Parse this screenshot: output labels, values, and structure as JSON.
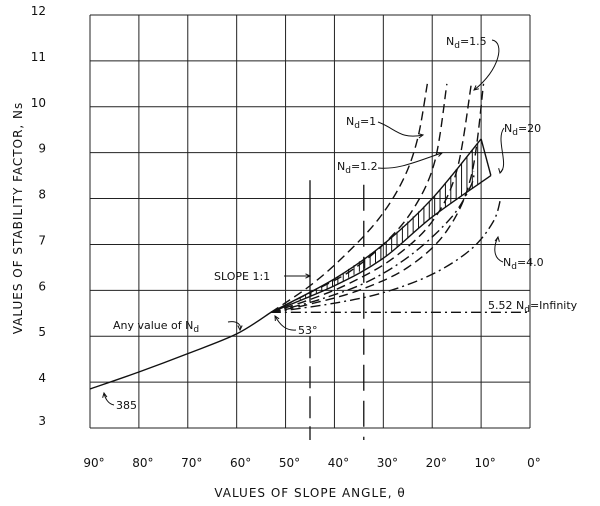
{
  "chart_data": {
    "type": "line",
    "xlabel": "VALUES OF SLOPE ANGLE, θ",
    "ylabel": "VALUES OF STABILITY FACTOR, Ns",
    "xlim": [
      90,
      0
    ],
    "ylim": [
      3,
      12
    ],
    "x_reversed": true,
    "grid": true,
    "xticks": [
      "90°",
      "80°",
      "70°",
      "60°",
      "50°",
      "40°",
      "30°",
      "20°",
      "10°",
      "0°"
    ],
    "xtick_values": [
      90,
      80,
      70,
      60,
      50,
      40,
      30,
      20,
      10,
      0
    ],
    "yticks": [
      3,
      4,
      5,
      6,
      7,
      8,
      9,
      10,
      11,
      12
    ],
    "series": [
      {
        "key": "any",
        "style": "solid",
        "points": [
          [
            90,
            3.85
          ],
          [
            80,
            4.22
          ],
          [
            70,
            4.62
          ],
          [
            60,
            5.05
          ],
          [
            53,
            5.52
          ]
        ]
      },
      {
        "key": "nd1",
        "style": "dash",
        "points": [
          [
            53,
            5.52
          ],
          [
            45,
            6.1
          ],
          [
            38,
            6.75
          ],
          [
            31,
            7.55
          ],
          [
            26,
            8.4
          ],
          [
            23,
            9.3
          ],
          [
            21,
            10.5
          ]
        ]
      },
      {
        "key": "nd12",
        "style": "dash",
        "points": [
          [
            53,
            5.52
          ],
          [
            45,
            5.95
          ],
          [
            37,
            6.4
          ],
          [
            30,
            7.0
          ],
          [
            24,
            7.75
          ],
          [
            19.5,
            8.8
          ],
          [
            17,
            10.5
          ]
        ]
      },
      {
        "key": "nd15",
        "style": "dash",
        "points": [
          [
            53,
            5.52
          ],
          [
            45,
            5.8
          ],
          [
            37,
            6.15
          ],
          [
            28,
            6.7
          ],
          [
            20,
            7.5
          ],
          [
            15,
            8.6
          ],
          [
            12,
            10.5
          ]
        ]
      },
      {
        "key": "nd2",
        "style": "dash",
        "points": [
          [
            53,
            5.52
          ],
          [
            45,
            5.7
          ],
          [
            35,
            6.0
          ],
          [
            25,
            6.5
          ],
          [
            17,
            7.3
          ],
          [
            12,
            8.5
          ],
          [
            9.5,
            10.5
          ]
        ]
      },
      {
        "key": "nd20_upper",
        "style": "solid",
        "points": [
          [
            53,
            5.52
          ],
          [
            40,
            6.25
          ],
          [
            30,
            7.0
          ],
          [
            20,
            8.0
          ],
          [
            10,
            9.3
          ]
        ]
      },
      {
        "key": "nd20_lower",
        "style": "solid",
        "points": [
          [
            53,
            5.52
          ],
          [
            40,
            6.1
          ],
          [
            30,
            6.7
          ],
          [
            20,
            7.6
          ],
          [
            8,
            8.5
          ]
        ]
      },
      {
        "key": "nd4",
        "style": "dashdot",
        "points": [
          [
            53,
            5.52
          ],
          [
            40,
            5.72
          ],
          [
            30,
            5.95
          ],
          [
            20,
            6.35
          ],
          [
            12,
            6.9
          ],
          [
            7.5,
            7.5
          ],
          [
            6,
            8.0
          ]
        ]
      },
      {
        "key": "nd3",
        "style": "dashdot",
        "points": [
          [
            53,
            5.52
          ],
          [
            43,
            5.8
          ],
          [
            33,
            6.2
          ],
          [
            24,
            6.8
          ],
          [
            16,
            7.6
          ],
          [
            12,
            8.3
          ],
          [
            11.5,
            8.6
          ]
        ]
      },
      {
        "key": "ndinf",
        "style": "dashdot",
        "points": [
          [
            53,
            5.52
          ],
          [
            0,
            5.52
          ]
        ]
      }
    ],
    "vertical_refs": [
      {
        "key": "slope-1-1",
        "x": 45,
        "ytop": 8.4,
        "style": "solid-dash"
      },
      {
        "key": "slope-ref-35",
        "x": 34,
        "ytop": 8.3,
        "style": "longdash"
      }
    ],
    "annotations": {
      "nd15": {
        "n": "N",
        "sub": "d",
        "rest": "=1.5"
      },
      "nd1": {
        "n": "N",
        "sub": "d",
        "rest": "=1"
      },
      "nd12": {
        "n": "N",
        "sub": "d",
        "rest": "=1.2"
      },
      "nd20": {
        "n": "N",
        "sub": "d",
        "rest": "=20"
      },
      "nd4": {
        "n": "N",
        "sub": "d",
        "rest": "=4.0"
      },
      "ndinf": {
        "pre": "5.52 ",
        "n": "N",
        "sub": "d",
        "rest": "=Infinity"
      },
      "slope": "SLOPE 1:1",
      "any": {
        "pre": "Any value of ",
        "n": "N",
        "sub": "d"
      },
      "angle53": "53°",
      "v385": "385"
    }
  }
}
